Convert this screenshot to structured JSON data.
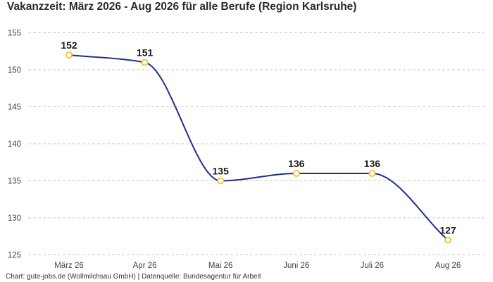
{
  "chart_data": {
    "type": "line",
    "title": "Vakanzzeit: März 2026 - Aug 2026 für alle Berufe (Region Karlsruhe)",
    "xlabel": "",
    "ylabel": "",
    "categories": [
      "März 26",
      "Apr 26",
      "Mai 26",
      "Juni 26",
      "Juli 26",
      "Aug 26"
    ],
    "series": [
      {
        "values": [
          152,
          151,
          135,
          136,
          136,
          127
        ],
        "color": "#1f2f8a",
        "marker_fill": "#ffffff",
        "marker_stroke": "#f2c12e"
      }
    ],
    "ylim": [
      124,
      156
    ],
    "yticks": [
      125,
      130,
      135,
      140,
      145,
      150,
      155
    ],
    "grid": true,
    "grid_style": "dashed",
    "legend": "none",
    "source": "Chart: gute-jobs.de (Wollmilchsau GmbH) | Datenquelle: Bundesagentur für Arbeit"
  }
}
